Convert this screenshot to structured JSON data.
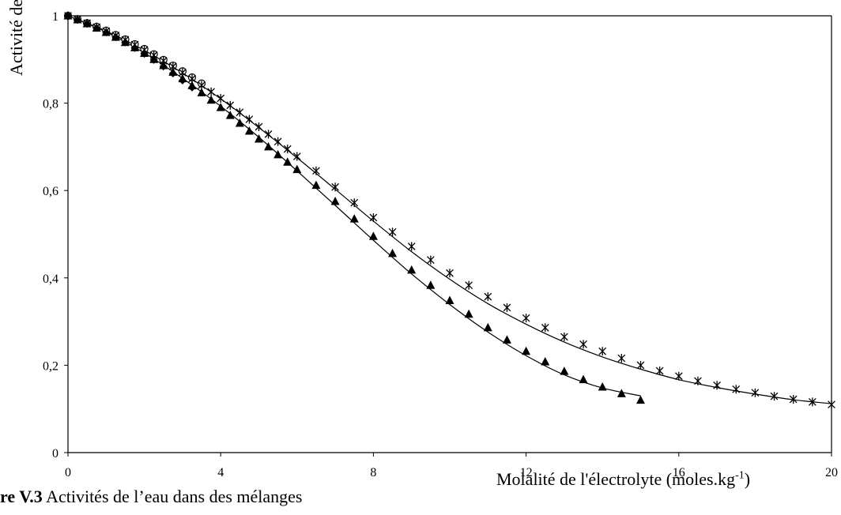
{
  "chart_data": {
    "type": "scatter",
    "xlabel": "Molalité de l'électrolyte (moles.kg",
    "xlabel_sup": "-1",
    "xlabel_close": ")",
    "ylabel": "Activité de l'eau",
    "xlim": [
      0,
      20
    ],
    "ylim": [
      0,
      1
    ],
    "x_ticks": [
      "0",
      "4",
      "8",
      "12",
      "16",
      "20"
    ],
    "y_ticks": [
      "0",
      "0,2",
      "0,4",
      "0,6",
      "0,8",
      "1"
    ],
    "x_tick_values": [
      0,
      4,
      8,
      12,
      16,
      20
    ],
    "y_tick_values": [
      0,
      0.2,
      0.4,
      0.6,
      0.8,
      1
    ],
    "grid": false,
    "series": [
      {
        "marker": "circle-open",
        "x": [
          0.0,
          0.25,
          0.5,
          0.75,
          1.0,
          1.25,
          1.5,
          1.75,
          2.0,
          2.25,
          2.5,
          2.75,
          3.0,
          3.25,
          3.5
        ],
        "y": [
          1.0,
          0.992,
          0.983,
          0.975,
          0.966,
          0.956,
          0.946,
          0.935,
          0.924,
          0.912,
          0.899,
          0.886,
          0.873,
          0.859,
          0.845
        ]
      },
      {
        "marker": "diamond-filled",
        "x": [
          0.0,
          0.25,
          0.5,
          0.75,
          1.0,
          1.25,
          1.5,
          1.75,
          2.0,
          2.25,
          2.5,
          2.75,
          3.0,
          3.25
        ],
        "y": [
          1.0,
          0.991,
          0.982,
          0.972,
          0.962,
          0.951,
          0.939,
          0.926,
          0.913,
          0.899,
          0.884,
          0.868,
          0.852,
          0.836
        ]
      },
      {
        "marker": "triangle-filled",
        "x": [
          0.0,
          0.25,
          0.5,
          0.75,
          1.0,
          1.25,
          1.5,
          1.75,
          2.0,
          2.25,
          2.5,
          2.75,
          3.0,
          3.25,
          3.5,
          3.75,
          4.0,
          4.25,
          4.5,
          4.75,
          5.0,
          5.25,
          5.5,
          5.75,
          6.0,
          6.5,
          7.0,
          7.5,
          8.0,
          8.5,
          9.0,
          9.5,
          10.0,
          10.5,
          11.0,
          11.5,
          12.0,
          12.5,
          13.0,
          13.5,
          14.0,
          14.5,
          15.0
        ],
        "y": [
          1.0,
          0.991,
          0.982,
          0.972,
          0.962,
          0.951,
          0.939,
          0.927,
          0.914,
          0.9,
          0.886,
          0.871,
          0.856,
          0.84,
          0.824,
          0.807,
          0.79,
          0.772,
          0.754,
          0.736,
          0.718,
          0.7,
          0.682,
          0.665,
          0.648,
          0.612,
          0.575,
          0.535,
          0.495,
          0.456,
          0.418,
          0.383,
          0.348,
          0.317,
          0.286,
          0.258,
          0.232,
          0.208,
          0.186,
          0.167,
          0.15,
          0.135,
          0.12
        ]
      },
      {
        "marker": "asterisk",
        "x": [
          0.0,
          0.25,
          0.5,
          0.75,
          1.0,
          1.25,
          1.5,
          1.75,
          2.0,
          2.25,
          2.5,
          2.75,
          3.0,
          3.25,
          3.5,
          3.75,
          4.0,
          4.25,
          4.5,
          4.75,
          5.0,
          5.25,
          5.5,
          5.75,
          6.0,
          6.5,
          7.0,
          7.5,
          8.0,
          8.5,
          9.0,
          9.5,
          10.0,
          10.5,
          11.0,
          11.5,
          12.0,
          12.5,
          13.0,
          13.5,
          14.0,
          14.5,
          15.0,
          15.5,
          16.0,
          16.5,
          17.0,
          17.5,
          18.0,
          18.5,
          19.0,
          19.5,
          20.0
        ],
        "y": [
          1.0,
          0.992,
          0.983,
          0.974,
          0.965,
          0.955,
          0.945,
          0.934,
          0.922,
          0.91,
          0.897,
          0.884,
          0.87,
          0.856,
          0.841,
          0.826,
          0.811,
          0.795,
          0.779,
          0.763,
          0.746,
          0.729,
          0.712,
          0.695,
          0.678,
          0.645,
          0.608,
          0.572,
          0.538,
          0.505,
          0.472,
          0.441,
          0.411,
          0.383,
          0.357,
          0.332,
          0.308,
          0.286,
          0.265,
          0.248,
          0.232,
          0.216,
          0.2,
          0.187,
          0.175,
          0.164,
          0.154,
          0.145,
          0.137,
          0.129,
          0.122,
          0.116,
          0.11
        ]
      }
    ],
    "fit_lines": [
      {
        "x": [
          0,
          1,
          2,
          3,
          4,
          5,
          6,
          7,
          8,
          9,
          10,
          11,
          12,
          13,
          14,
          15
        ],
        "y": [
          1.0,
          0.963,
          0.915,
          0.857,
          0.793,
          0.722,
          0.645,
          0.566,
          0.486,
          0.409,
          0.339,
          0.276,
          0.222,
          0.178,
          0.148,
          0.13
        ]
      },
      {
        "x": [
          0,
          1,
          2,
          3,
          4,
          5,
          6,
          7,
          8,
          9,
          10,
          11,
          12,
          13,
          14,
          15,
          16,
          17,
          18,
          19,
          20
        ],
        "y": [
          1.0,
          0.965,
          0.921,
          0.869,
          0.81,
          0.744,
          0.675,
          0.603,
          0.53,
          0.46,
          0.397,
          0.341,
          0.294,
          0.253,
          0.219,
          0.191,
          0.167,
          0.149,
          0.134,
          0.121,
          0.112
        ]
      }
    ]
  },
  "caption": {
    "bold": "re V.3",
    "rest": " Activités de l’eau dans des mélanges"
  }
}
